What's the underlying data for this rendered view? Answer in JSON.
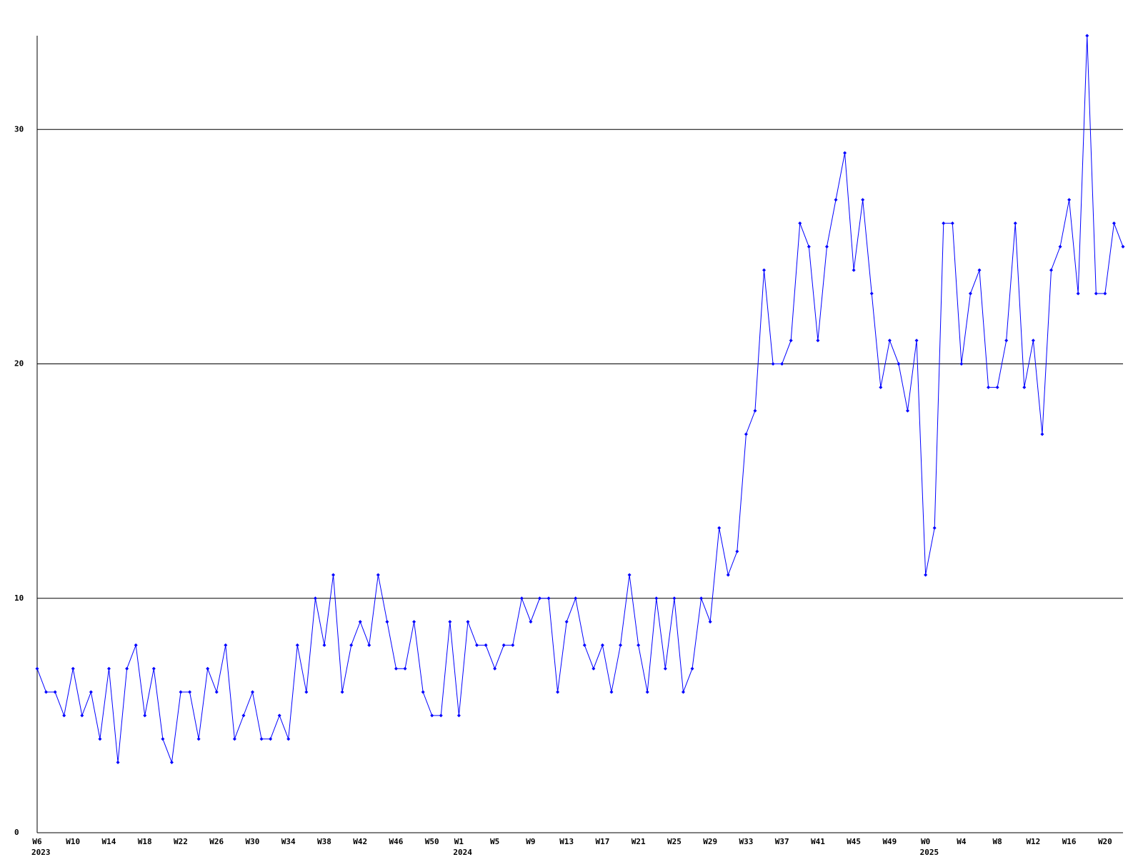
{
  "chart_data": {
    "type": "line",
    "color": "#0000ff",
    "grid": true,
    "categories": [
      "W6",
      null,
      null,
      null,
      "W10",
      null,
      null,
      null,
      "W14",
      null,
      null,
      null,
      "W18",
      null,
      null,
      null,
      "W22",
      null,
      null,
      null,
      "W26",
      null,
      null,
      null,
      "W30",
      null,
      null,
      null,
      "W34",
      null,
      null,
      null,
      "W38",
      null,
      null,
      null,
      "W42",
      null,
      null,
      null,
      "W46",
      null,
      null,
      null,
      "W50",
      null,
      null,
      "W1",
      null,
      null,
      null,
      "W5",
      null,
      null,
      null,
      "W9",
      null,
      null,
      null,
      "W13",
      null,
      null,
      null,
      "W17",
      null,
      null,
      null,
      "W21",
      null,
      null,
      null,
      "W25",
      null,
      null,
      null,
      "W29",
      null,
      null,
      null,
      "W33",
      null,
      null,
      null,
      "W37",
      null,
      null,
      null,
      "W41",
      null,
      null,
      null,
      "W45",
      null,
      null,
      null,
      "W49",
      null,
      null,
      null,
      "W0",
      null,
      null,
      null,
      "W4",
      null,
      null,
      null,
      "W8",
      null,
      null,
      null,
      "W12",
      null,
      null,
      null,
      "W16",
      null,
      null,
      null,
      "W20",
      null,
      null
    ],
    "years": [
      "2023",
      null,
      null,
      null,
      null,
      null,
      null,
      null,
      null,
      null,
      null,
      null,
      null,
      null,
      null,
      null,
      null,
      null,
      null,
      null,
      null,
      null,
      null,
      null,
      null,
      null,
      null,
      null,
      null,
      null,
      null,
      null,
      null,
      null,
      null,
      null,
      null,
      null,
      null,
      null,
      null,
      null,
      null,
      null,
      null,
      null,
      null,
      "2024",
      null,
      null,
      null,
      null,
      null,
      null,
      null,
      null,
      null,
      null,
      null,
      null,
      null,
      null,
      null,
      null,
      null,
      null,
      null,
      null,
      null,
      null,
      null,
      null,
      null,
      null,
      null,
      null,
      null,
      null,
      null,
      null,
      null,
      null,
      null,
      null,
      null,
      null,
      null,
      null,
      null,
      null,
      null,
      null,
      null,
      null,
      null,
      null,
      null,
      null,
      null,
      "2025",
      null,
      null,
      null,
      null,
      null,
      null,
      null,
      null,
      null,
      null,
      null,
      null,
      null,
      null,
      null,
      null,
      null,
      null,
      null,
      null,
      null
    ],
    "values": [
      7,
      6,
      6,
      5,
      7,
      5,
      6,
      4,
      7,
      3,
      7,
      8,
      5,
      7,
      4,
      3,
      6,
      6,
      4,
      7,
      6,
      8,
      4,
      5,
      6,
      4,
      4,
      5,
      4,
      8,
      6,
      10,
      8,
      11,
      6,
      8,
      9,
      8,
      11,
      9,
      7,
      7,
      9,
      6,
      5,
      5,
      9,
      5,
      9,
      8,
      8,
      7,
      8,
      8,
      10,
      9,
      10,
      10,
      6,
      9,
      10,
      8,
      7,
      8,
      6,
      8,
      11,
      8,
      6,
      10,
      7,
      10,
      6,
      7,
      10,
      9,
      13,
      11,
      12,
      17,
      18,
      24,
      20,
      20,
      21,
      26,
      25,
      21,
      25,
      27,
      29,
      24,
      27,
      23,
      19,
      21,
      20,
      18,
      21,
      11,
      13,
      26,
      26,
      20,
      23,
      24,
      19,
      19,
      21,
      26,
      19,
      21,
      17,
      24,
      25,
      27,
      23,
      34,
      23,
      23,
      26,
      25
    ],
    "ylim": [
      0,
      34
    ],
    "yticks": [
      0,
      10,
      20,
      30
    ]
  }
}
